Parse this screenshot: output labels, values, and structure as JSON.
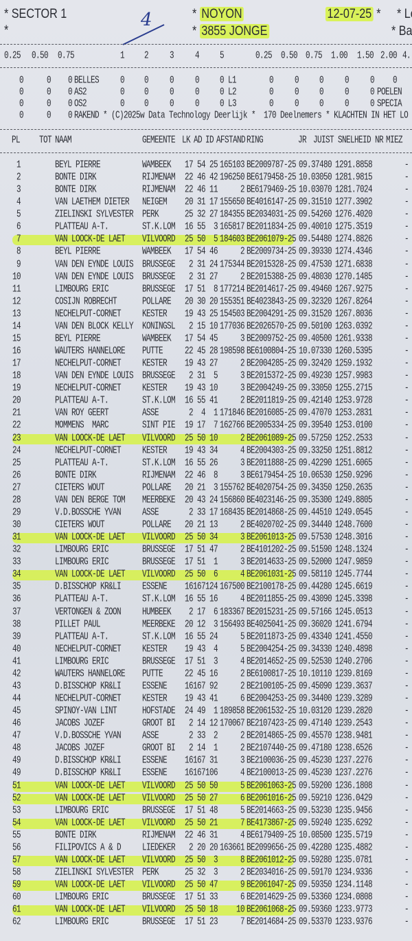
{
  "header": {
    "sector": "* SECTOR 1",
    "star2": "*",
    "handwritten": "4",
    "location": "NOYON",
    "count_category": "3855 JONGE",
    "date": "12-07-25",
    "right_top": "* Lo",
    "right_bottom": "* Ba",
    "highlight_color": "#d9f25a"
  },
  "stake_headers": {
    "left": [
      "0.25",
      "0.50",
      "0.75"
    ],
    "middle": [
      "1",
      "2",
      "3",
      "4",
      "5"
    ],
    "right": [
      "0.25",
      "0.50",
      "0.75",
      "1.00",
      "1.50",
      "2.00",
      "4."
    ]
  },
  "stake_rows": [
    {
      "left": [
        "0",
        "0",
        "0"
      ],
      "label": "BELLES",
      "middle": [
        "0",
        "0",
        "0",
        "0",
        "0"
      ],
      "mlabel": "L1",
      "right": [
        "0",
        "0",
        "0",
        "0",
        "0",
        "0"
      ],
      "rlabel": ""
    },
    {
      "left": [
        "0",
        "0",
        "0"
      ],
      "label": "AS2",
      "middle": [
        "0",
        "0",
        "0",
        "0",
        "0"
      ],
      "mlabel": "L2",
      "right": [
        "0",
        "0",
        "0",
        "0",
        "0"
      ],
      "rlabel": "POELEN"
    },
    {
      "left": [
        "0",
        "0",
        "0"
      ],
      "label": "OS2",
      "middle": [
        "0",
        "0",
        "0",
        "0",
        "0"
      ],
      "mlabel": "L3",
      "right": [
        "0",
        "0",
        "0",
        "0",
        "0"
      ],
      "rlabel": "SPECIA"
    }
  ],
  "footer_line": {
    "left": [
      "0",
      "0",
      "0"
    ],
    "text": "RAKEND * (C)2025w Data Technology Deerlijk *  170 Deelnemers * KLACHTEN IN HET LO"
  },
  "columns": {
    "pl": "PL",
    "tot": "TOT",
    "naam": "NAAM",
    "gemeente": "GEMEENTE",
    "lk": "LK",
    "ad": "AD",
    "id": "ID",
    "afstand": "AFSTAND",
    "ring": "RING",
    "jr": "JR",
    "juist": "JUIST",
    "snelheid": "SNELHEID",
    "nr": "NR",
    "miez": "MIEZ"
  },
  "rows": [
    [
      "1",
      "BEYL PIERRE",
      "WAMBEEK",
      "17 54 25",
      "165103",
      "BE2009787-25",
      "09.37480",
      "1291.8858",
      "-",
      false
    ],
    [
      "2",
      "BONTE DIRK",
      "RIJMENAM",
      "22 46 42",
      "196250",
      "BE6179458-25",
      "10.03050",
      "1281.9815",
      "-",
      false
    ],
    [
      "3",
      "BONTE DIRK",
      "RIJMENAM",
      "22 46 11",
      "2",
      "BE6179469-25",
      "10.03070",
      "1281.7024",
      "-",
      false
    ],
    [
      "4",
      "VAN LAETHEM DIETER",
      "NEIGEM",
      "20 31 17",
      "155650",
      "BE4016147-25",
      "09.31510",
      "1277.3902",
      "-",
      false
    ],
    [
      "5",
      "ZIELINSKI SYLVESTER",
      "PERK",
      "25 32 27",
      "184355",
      "BE2034031-25",
      "09.54260",
      "1276.4020",
      "-",
      false
    ],
    [
      "6",
      "PLATTEAU A-T.",
      "ST.K.LOM",
      "16 55  3",
      "165817",
      "BE2011834-25",
      "09.40010",
      "1275.3519",
      "-",
      false
    ],
    [
      "7",
      "VAN LOOCK-DE LAET",
      "VILVOORD",
      "25 50  5",
      "184603",
      "BE2061079-25",
      "09.54480",
      "1274.8826",
      "-",
      true
    ],
    [
      "8",
      "BEYL PIERRE",
      "WAMBEEK",
      "17 54 46",
      "2",
      "BE2009734-25",
      "09.39330",
      "1274.4346",
      "-",
      false
    ],
    [
      "9",
      "VAN DEN EYNDE LOUIS",
      "BRUSSEGE",
      " 2 31 24",
      "175344",
      "BE2015328-25",
      "09.47530",
      "1271.6838",
      "-",
      false
    ],
    [
      "10",
      "VAN DEN EYNDE LOUIS",
      "BRUSSEGE",
      " 2 31 27",
      "2",
      "BE2015388-25",
      "09.48030",
      "1270.1485",
      "-",
      false
    ],
    [
      "11",
      "LIMBOURG ERIC",
      "BRUSSEGE",
      "17 51  8",
      "177214",
      "BE2014617-25",
      "09.49460",
      "1267.9275",
      "-",
      false
    ],
    [
      "12",
      "COSIJN ROBRECHT",
      "POLLARE",
      "20 30 20",
      "155351",
      "BE4023843-25",
      "09.32320",
      "1267.8264",
      "-",
      false
    ],
    [
      "13",
      "NECHELPUT-CORNET",
      "KESTER",
      "19 43 25",
      "154503",
      "BE2004291-25",
      "09.31520",
      "1267.8036",
      "-",
      false
    ],
    [
      "14",
      "VAN DEN BLOCK KELLY",
      "KONINGSL",
      " 2 15 10",
      "177036",
      "BE2026570-25",
      "09.50100",
      "1263.0392",
      "-",
      false
    ],
    [
      "15",
      "BEYL PIERRE",
      "WAMBEEK",
      "17 54 45",
      "3",
      "BE2009752-25",
      "09.40500",
      "1261.9338",
      "-",
      false
    ],
    [
      "16",
      "WAUTERS HANNELORE",
      "PUTTE",
      "22 45 28",
      "198598",
      "BE6100804-25",
      "10.07330",
      "1260.5395",
      "-",
      false
    ],
    [
      "17",
      "NECHELPUT-CORNET",
      "KESTER",
      "19 43 27",
      "2",
      "BE2004285-25",
      "09.32420",
      "1259.1932",
      "-",
      false
    ],
    [
      "18",
      "VAN DEN EYNDE LOUIS",
      "BRUSSEGE",
      " 2 31  5",
      "3",
      "BE2015372-25",
      "09.49230",
      "1257.9983",
      "-",
      false
    ],
    [
      "19",
      "NECHELPUT-CORNET",
      "KESTER",
      "19 43 10",
      "3",
      "BE2004249-25",
      "09.33050",
      "1255.2715",
      "-",
      false
    ],
    [
      "20",
      "PLATTEAU A-T.",
      "ST.K.LOM",
      "16 55 41",
      "2",
      "BE2011819-25",
      "09.42140",
      "1253.9728",
      "-",
      false
    ],
    [
      "21",
      "VAN ROY GEERT",
      "ASSE",
      " 2  4  1",
      "171846",
      "BE2016085-25",
      "09.47070",
      "1253.2831",
      "-",
      false
    ],
    [
      "22",
      "MOMMENS  MARC",
      "SINT PIE",
      "19 17  7",
      "162766",
      "BE2005334-25",
      "09.39540",
      "1253.0100",
      "-",
      false
    ],
    [
      "23",
      "VAN LOOCK-DE LAET",
      "VILVOORD",
      "25 50 10",
      "2",
      "BE2061089-25",
      "09.57250",
      "1252.2533",
      "-",
      true
    ],
    [
      "24",
      "NECHELPUT-CORNET",
      "KESTER",
      "19 43 34",
      "4",
      "BE2004303-25",
      "09.33250",
      "1251.8812",
      "-",
      false
    ],
    [
      "25",
      "PLATTEAU A-T.",
      "ST.K.LOM",
      "16 55 26",
      "3",
      "BE2011888-25",
      "09.42290",
      "1251.6065",
      "-",
      false
    ],
    [
      "26",
      "BONTE DIRK",
      "RIJMENAM",
      "22 46  8",
      "3",
      "BE6179454-25",
      "10.06530",
      "1250.9296",
      "-",
      false
    ],
    [
      "27",
      "CIETERS WOUT",
      "POLLARE",
      "20 21  3",
      "155762",
      "BE4020754-25",
      "09.34350",
      "1250.2635",
      "-",
      false
    ],
    [
      "28",
      "VAN DEN BERGE TOM",
      "MEERBEKE",
      "20 43 24",
      "156860",
      "BE4023146-25",
      "09.35300",
      "1249.8805",
      "-",
      false
    ],
    [
      "29",
      "V.D.BOSSCHE YVAN",
      "ASSE",
      " 2 33 17",
      "168435",
      "BE2014868-25",
      "09.44510",
      "1249.0545",
      "-",
      false
    ],
    [
      "30",
      "CIETERS WOUT",
      "POLLARE",
      "20 21 13",
      "2",
      "BE4020702-25",
      "09.34440",
      "1248.7600",
      "-",
      false
    ],
    [
      "31",
      "VAN LOOCK-DE LAET",
      "VILVOORD",
      "25 50 34",
      "3",
      "BE2061013-25",
      "09.57530",
      "1248.3016",
      "-",
      true
    ],
    [
      "32",
      "LIMBOURG ERIC",
      "BRUSSEGE",
      "17 51 47",
      "2",
      "BE4101202-25",
      "09.51590",
      "1248.1324",
      "-",
      false
    ],
    [
      "33",
      "LIMBOURG ERIC",
      "BRUSSEGE",
      "17 51  1",
      "3",
      "BE2014633-25",
      "09.52000",
      "1247.9859",
      "-",
      false
    ],
    [
      "34",
      "VAN LOOCK-DE LAET",
      "VILVOORD",
      "25 50  6",
      "4",
      "BE2061031-25",
      "09.58110",
      "1245.7744",
      "-",
      true
    ],
    [
      "35",
      "D.BISSCHOP KR&LI",
      "ESSENE",
      "16167124",
      "167500",
      "BE2100178-25",
      "09.44280",
      "1245.6619",
      "-",
      false
    ],
    [
      "36",
      "PLATTEAU A-T.",
      "ST.K.LOM",
      "16 55 16",
      "4",
      "BE2011855-25",
      "09.43090",
      "1245.3398",
      "-",
      false
    ],
    [
      "37",
      "VERTONGEN & ZOON",
      "HUMBEEK",
      " 2 17  6",
      "183367",
      "BE2015231-25",
      "09.57166",
      "1245.0513",
      "-",
      false
    ],
    [
      "38",
      "PILLET PAUL",
      "MEERBEKE",
      "20 12  3",
      "156493",
      "BE4025041-25",
      "09.36020",
      "1241.6794",
      "-",
      false
    ],
    [
      "39",
      "PLATTEAU A-T.",
      "ST.K.LOM",
      "16 55 24",
      "5",
      "BE2011873-25",
      "09.43340",
      "1241.4550",
      "-",
      false
    ],
    [
      "40",
      "NECHELPUT-CORNET",
      "KESTER",
      "19 43  4",
      "5",
      "BE2004254-25",
      "09.34330",
      "1240.4898",
      "-",
      false
    ],
    [
      "41",
      "LIMBOURG ERIC",
      "BRUSSEGE",
      "17 51  3",
      "4",
      "BE2014652-25",
      "09.52530",
      "1240.2706",
      "-",
      false
    ],
    [
      "42",
      "WAUTERS HANNELORE",
      "PUTTE",
      "22 45 16",
      "2",
      "BE6100817-25",
      "10.10110",
      "1239.8169",
      "-",
      false
    ],
    [
      "43",
      "D.BISSCHOP KR&LI",
      "ESSENE",
      "16167 92",
      "2",
      "BE2100105-25",
      "09.45090",
      "1239.3637",
      "-",
      false
    ],
    [
      "44",
      "NECHELPUT-CORNET",
      "KESTER",
      "19 43 41",
      "6",
      "BE2004253-25",
      "09.34400",
      "1239.3289",
      "-",
      false
    ],
    [
      "45",
      "SPINOY-VAN LINT",
      "HOFSTADE",
      "24 49  1",
      "189858",
      "BE2061532-25",
      "10.03120",
      "1239.2820",
      "-",
      false
    ],
    [
      "46",
      "JACOBS JOZEF",
      "GROOT BI",
      " 2 14 12",
      "170067",
      "BE2107423-25",
      "09.47140",
      "1239.2543",
      "-",
      false
    ],
    [
      "47",
      "V.D.BOSSCHE YVAN",
      "ASSE",
      " 2 33  2",
      "2",
      "BE2014865-25",
      "09.45570",
      "1238.9481",
      "-",
      false
    ],
    [
      "48",
      "JACOBS JOZEF",
      "GROOT BI",
      " 2 14  1",
      "2",
      "BE2107440-25",
      "09.47180",
      "1238.6526",
      "-",
      false
    ],
    [
      "49",
      "D.BISSCHOP KR&LI",
      "ESSENE",
      "16167 31",
      "3",
      "BE2100036-25",
      "09.45230",
      "1237.2276",
      "-",
      false
    ],
    [
      "49",
      "D.BISSCHOP KR&LI",
      "ESSENE",
      "16167106",
      "4",
      "BE2100013-25",
      "09.45230",
      "1237.2276",
      "-",
      false
    ],
    [
      "51",
      "VAN LOOCK-DE LAET",
      "VILVOORD",
      "25 50 50",
      "5",
      "BE2061063-25",
      "09.59200",
      "1236.1808",
      "-",
      true
    ],
    [
      "52",
      "VAN LOOCK-DE LAET",
      "VILVOORD",
      "25 50 27",
      "6",
      "BE2061016-25",
      "09.59210",
      "1236.0429",
      "-",
      true
    ],
    [
      "53",
      "LIMBOURG ERIC",
      "BRUSSEGE",
      "17 51 48",
      "5",
      "BE2014663-25",
      "09.53230",
      "1235.9456",
      "-",
      false
    ],
    [
      "54",
      "VAN LOOCK-DE LAET",
      "VILVOORD",
      "25 50 21",
      "7",
      "BE4173867-25",
      "09.59240",
      "1235.6292",
      "-",
      true
    ],
    [
      "55",
      "BONTE DIRK",
      "RIJMENAM",
      "22 46 31",
      "4",
      "BE6179409-25",
      "10.08500",
      "1235.5719",
      "-",
      false
    ],
    [
      "56",
      "FILIPOVICS A & D",
      "LIEDEKER",
      " 2 20 20",
      "163661",
      "BE2099656-25",
      "09.42280",
      "1235.4882",
      "-",
      false
    ],
    [
      "57",
      "VAN LOOCK-DE LAET",
      "VILVOORD",
      "25 50  3",
      "8",
      "BE2061012-25",
      "09.59280",
      "1235.0781",
      "-",
      true
    ],
    [
      "58",
      "ZIELINSKI SYLVESTER",
      "PERK",
      "25 32  3",
      "2",
      "BE2034016-25",
      "09.59170",
      "1234.9336",
      "-",
      false
    ],
    [
      "59",
      "VAN LOOCK-DE LAET",
      "VILVOORD",
      "25 50 47",
      "9",
      "BE2061047-25",
      "09.59350",
      "1234.1148",
      "-",
      true
    ],
    [
      "60",
      "LIMBOURG ERIC",
      "BRUSSEGE",
      "17 51 33",
      "6",
      "BE2014629-25",
      "09.53360",
      "1234.0808",
      "-",
      false
    ],
    [
      "61",
      "VAN LOOCK-DE LAET",
      "VILVOORD",
      "25 50 18",
      "10",
      "BE2061068-25",
      "09.59360",
      "1233.9773",
      "-",
      true
    ],
    [
      "62",
      "LIMBOURG ERIC",
      "BRUSSEGE",
      "17 51 23",
      "7",
      "BE2014684-25",
      "09.53370",
      "1233.9376",
      "-",
      false
    ]
  ]
}
